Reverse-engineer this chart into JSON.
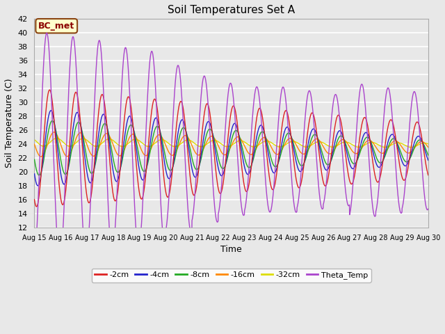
{
  "title": "Soil Temperatures Set A",
  "xlabel": "Time",
  "ylabel": "Soil Temperature (C)",
  "ylim": [
    12,
    42
  ],
  "yticks": [
    12,
    14,
    16,
    18,
    20,
    22,
    24,
    26,
    28,
    30,
    32,
    34,
    36,
    38,
    40,
    42
  ],
  "xlim_days": [
    0,
    15
  ],
  "fig_bg": "#e8e8e8",
  "plot_bg": "#e8e8e8",
  "annotation_text": "BC_met",
  "annotation_bg": "#ffffcc",
  "annotation_border": "#8b4513",
  "series_colors": {
    "-2cm": "#dd2222",
    "-4cm": "#2222cc",
    "-8cm": "#22aa22",
    "-16cm": "#ff8800",
    "-32cm": "#dddd00",
    "Theta_Temp": "#aa44cc"
  },
  "legend_colors": [
    "#dd2222",
    "#2222cc",
    "#22aa22",
    "#ff8800",
    "#dddd00",
    "#aa44cc"
  ],
  "legend_labels": [
    "-2cm",
    "-4cm",
    "-8cm",
    "-16cm",
    "-32cm",
    "Theta_Temp"
  ],
  "xtick_labels": [
    "Aug 15",
    "Aug 16",
    "Aug 17",
    "Aug 18",
    "Aug 19",
    "Aug 20",
    "Aug 21",
    "Aug 22",
    "Aug 23",
    "Aug 24",
    "Aug 25",
    "Aug 26",
    "Aug 27",
    "Aug 28",
    "Aug 29",
    "Aug 30"
  ],
  "n_points": 3000
}
